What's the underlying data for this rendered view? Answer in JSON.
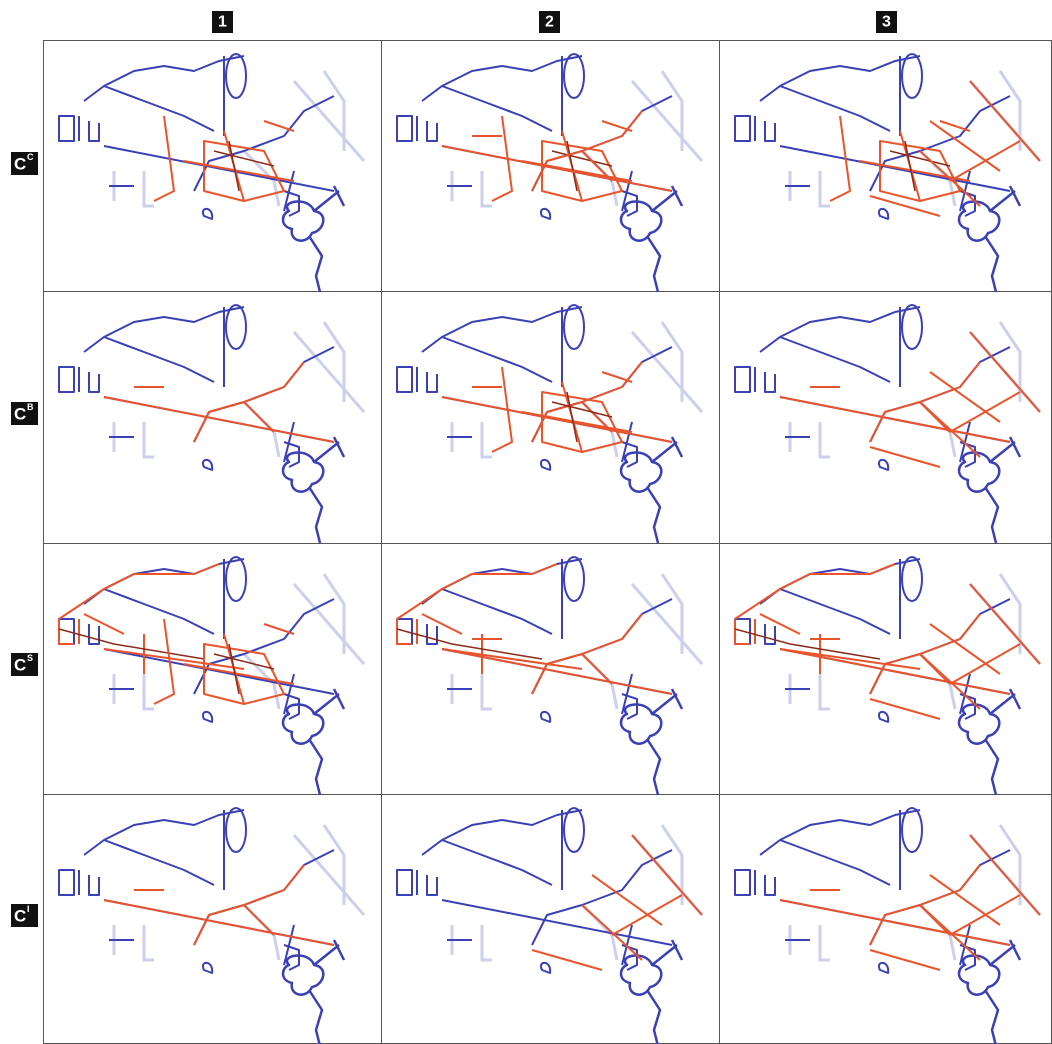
{
  "columns": [
    "1",
    "2",
    "3"
  ],
  "rows": [
    {
      "label": "C",
      "superscript": "C"
    },
    {
      "label": "C",
      "superscript": "B"
    },
    {
      "label": "C",
      "superscript": "S"
    },
    {
      "label": "C",
      "superscript": "I"
    }
  ]
}
